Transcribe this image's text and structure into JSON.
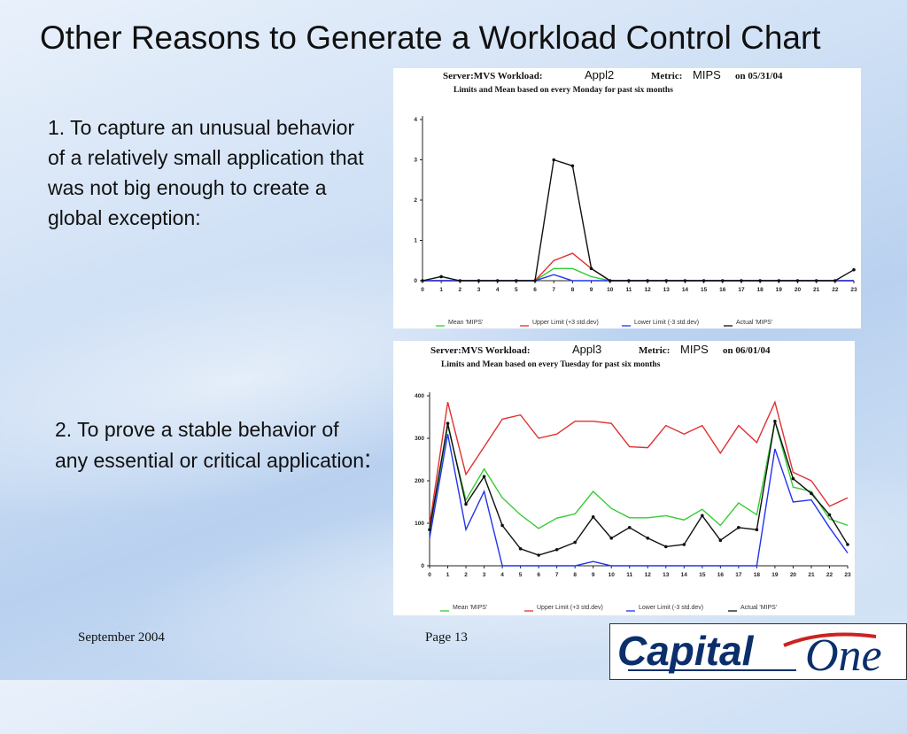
{
  "slide": {
    "title": "Other Reasons to Generate a Workload Control Chart",
    "reason1": "1. To capture an unusual behavior of a relatively small application that was not big enough to create a global exception:",
    "reason2_text": "2. To  prove a stable behavior of any essential or critical application",
    "reason2_colon": ":"
  },
  "footer": {
    "date": "September 2004",
    "page": "Page 13",
    "logo_text": "Capital One",
    "logo_word1": "Capital",
    "logo_word2": "One"
  },
  "chart_data": [
    {
      "type": "line",
      "header": {
        "server_label": "Server:MVS  Workload:",
        "workload": "Appl2",
        "metric_label": "Metric:",
        "metric": "MIPS",
        "date_label": "on  05/31/04",
        "subtitle": "Limits and Mean based on every Monday for past six months"
      },
      "x": [
        0,
        1,
        2,
        3,
        4,
        5,
        6,
        7,
        8,
        9,
        10,
        11,
        12,
        13,
        14,
        15,
        16,
        17,
        18,
        19,
        20,
        21,
        22,
        23
      ],
      "ylim": [
        0,
        4
      ],
      "yticks": [
        0,
        1,
        2,
        3,
        4
      ],
      "legend": [
        "Mean 'MIPS'",
        "Upper Limit (+3  std.dev)",
        "Lower Limit (-3  std.dev)",
        "Actual 'MIPS'"
      ],
      "series": [
        {
          "name": "Mean 'MIPS'",
          "color": "#33cc33",
          "values": [
            0,
            0,
            0,
            0,
            0,
            0,
            0,
            0.3,
            0.3,
            0.1,
            0,
            0,
            0,
            0,
            0,
            0,
            0,
            0,
            0,
            0,
            0,
            0,
            0,
            0
          ]
        },
        {
          "name": "Upper Limit (+3  std.dev)",
          "color": "#e03030",
          "values": [
            0,
            0,
            0,
            0,
            0,
            0,
            0,
            0.5,
            0.68,
            0.3,
            0,
            0,
            0,
            0,
            0,
            0,
            0,
            0,
            0,
            0,
            0,
            0,
            0,
            0
          ]
        },
        {
          "name": "Lower Limit (-3  std.dev)",
          "color": "#2233ee",
          "values": [
            0,
            0,
            0,
            0,
            0,
            0,
            0,
            0.15,
            0,
            0,
            0,
            0,
            0,
            0,
            0,
            0,
            0,
            0,
            0,
            0,
            0,
            0,
            0,
            0
          ]
        },
        {
          "name": "Actual 'MIPS'",
          "color": "#111111",
          "values": [
            0,
            0.1,
            0,
            0,
            0,
            0,
            0,
            3.0,
            2.85,
            0.3,
            0,
            0,
            0,
            0,
            0,
            0,
            0,
            0,
            0,
            0,
            0,
            0,
            0,
            0.27
          ]
        }
      ]
    },
    {
      "type": "line",
      "header": {
        "server_label": "Server:MVS  Workload:",
        "workload": "Appl3",
        "metric_label": "Metric:",
        "metric": "MIPS",
        "date_label": "on  06/01/04",
        "subtitle": "Limits and Mean based on every Tuesday for past six months"
      },
      "x": [
        0,
        1,
        2,
        3,
        4,
        5,
        6,
        7,
        8,
        9,
        10,
        11,
        12,
        13,
        14,
        15,
        16,
        17,
        18,
        19,
        20,
        21,
        22,
        23
      ],
      "ylim": [
        0,
        400
      ],
      "yticks": [
        0,
        100,
        200,
        300,
        400
      ],
      "legend": [
        "Mean 'MIPS'",
        "Upper Limit (+3  std.dev)",
        "Lower Limit (-3  std.dev)",
        "Actual 'MIPS'"
      ],
      "series": [
        {
          "name": "Mean 'MIPS'",
          "color": "#33cc33",
          "values": [
            80,
            330,
            155,
            228,
            160,
            120,
            88,
            112,
            122,
            175,
            135,
            113,
            113,
            118,
            108,
            133,
            95,
            148,
            120,
            340,
            185,
            175,
            110,
            95
          ]
        },
        {
          "name": "Upper Limit (+3  std.dev)",
          "color": "#e03030",
          "values": [
            95,
            385,
            215,
            280,
            345,
            355,
            300,
            310,
            340,
            340,
            335,
            280,
            278,
            330,
            310,
            330,
            265,
            330,
            290,
            385,
            220,
            200,
            140,
            160
          ]
        },
        {
          "name": "Lower Limit (-3  std.dev)",
          "color": "#2233ee",
          "values": [
            65,
            310,
            85,
            175,
            0,
            0,
            0,
            0,
            0,
            10,
            0,
            0,
            0,
            0,
            0,
            0,
            0,
            0,
            0,
            275,
            150,
            155,
            90,
            30
          ]
        },
        {
          "name": "Actual 'MIPS'",
          "color": "#111111",
          "values": [
            85,
            335,
            145,
            210,
            95,
            40,
            25,
            38,
            55,
            115,
            65,
            90,
            65,
            45,
            50,
            118,
            60,
            90,
            85,
            340,
            205,
            170,
            120,
            50
          ]
        }
      ]
    }
  ]
}
